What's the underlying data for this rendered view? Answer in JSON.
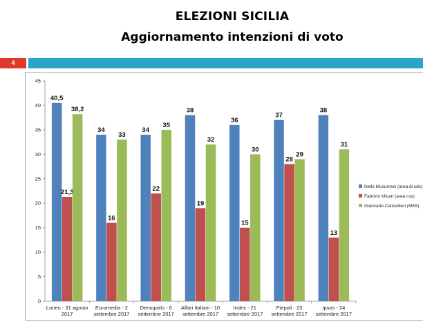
{
  "page": {
    "title_line1": "ELEZIONI SICILIA",
    "title_line2": "Aggiornamento intenzioni di voto",
    "page_number": "4",
    "accent_band_color": "#2aa5c9",
    "page_number_color": "#e03a2c"
  },
  "chart_data": {
    "type": "bar",
    "title": "",
    "xlabel": "",
    "ylabel": "",
    "ylim": [
      0,
      45
    ],
    "yticks": [
      0,
      5,
      10,
      15,
      20,
      25,
      30,
      35,
      40,
      45
    ],
    "grid": false,
    "legend_position": "right",
    "categories": [
      [
        "Lorien - 31 agosto",
        "2017"
      ],
      [
        "Euromedia - 2",
        "settembre 2017"
      ],
      [
        "Demopolis - 6",
        "settembre 2017"
      ],
      [
        "Affari Italiani - 10",
        "settembre 2017"
      ],
      [
        "Index - 21",
        "settembre 2017"
      ],
      [
        "Piepoli - 23",
        "settembre 2017"
      ],
      [
        "Ipsos - 24",
        "settembre 2017"
      ]
    ],
    "series": [
      {
        "name": "Nello Musumeci (area di cdx)",
        "color": "#4f81bd",
        "values": [
          40.5,
          34,
          34,
          38,
          36,
          37,
          38
        ],
        "labels": [
          "40,5",
          "34",
          "34",
          "38",
          "36",
          "37",
          "38"
        ]
      },
      {
        "name": "Fabrizio Micari (area csx)",
        "color": "#c0504d",
        "values": [
          21.3,
          16,
          22,
          19,
          15,
          28,
          13
        ],
        "labels": [
          "21,3",
          "16",
          "22",
          "19",
          "15",
          "28",
          "13"
        ]
      },
      {
        "name": "Giancarlo Cancellieri (M5S)",
        "color": "#9bbb59",
        "values": [
          38.2,
          33,
          35,
          32,
          30,
          29,
          31
        ],
        "labels": [
          "38,2",
          "33",
          "35",
          "32",
          "30",
          "29",
          "31"
        ]
      }
    ]
  }
}
